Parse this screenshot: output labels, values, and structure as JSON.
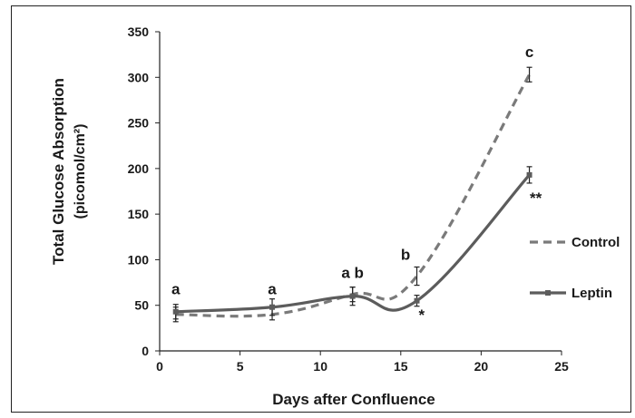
{
  "chart_data": {
    "type": "line",
    "xlabel": "Days after Confluence",
    "ylabel": "Total Glucose Absorption",
    "ylabel_unit": "(picomol/cm²)",
    "xlim": [
      0,
      25
    ],
    "ylim": [
      0,
      350
    ],
    "xticks": [
      0,
      5,
      10,
      15,
      20,
      25
    ],
    "yticks": [
      0,
      50,
      100,
      150,
      200,
      250,
      300,
      350
    ],
    "grid": false,
    "legend_position": "right",
    "series": [
      {
        "name": "Control",
        "style": "dashed",
        "color": "#7a7a7a",
        "x": [
          1,
          7,
          12,
          16,
          23
        ],
        "y": [
          40,
          40,
          62,
          82,
          303
        ],
        "err": [
          8,
          6,
          8,
          10,
          8
        ]
      },
      {
        "name": "Leptin",
        "style": "solid",
        "color": "#5c5c5c",
        "x": [
          1,
          7,
          12,
          16,
          23
        ],
        "y": [
          43,
          48,
          60,
          55,
          193
        ],
        "err": [
          8,
          9,
          10,
          6,
          9
        ]
      }
    ],
    "annotations": [
      {
        "text": "a",
        "x": 1,
        "y": 62
      },
      {
        "text": "a",
        "x": 7,
        "y": 62
      },
      {
        "text": "a b",
        "x": 12,
        "y": 80
      },
      {
        "text": "b",
        "x": 15.3,
        "y": 100
      },
      {
        "text": "c",
        "x": 23,
        "y": 322
      },
      {
        "text": "**",
        "x": 23.4,
        "y": 162
      },
      {
        "text": "*",
        "x": 16.3,
        "y": 34
      }
    ]
  }
}
